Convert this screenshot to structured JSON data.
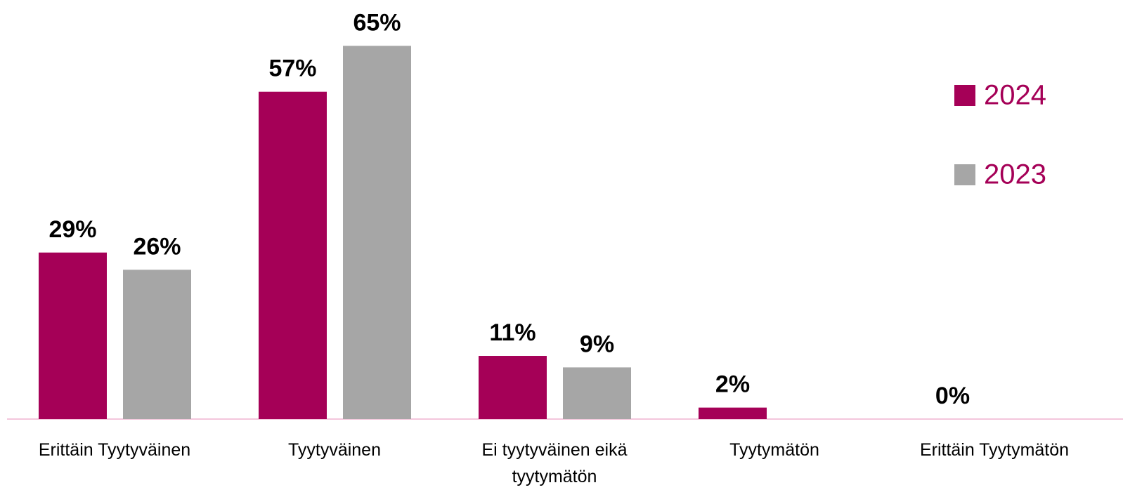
{
  "chart_data": {
    "type": "bar",
    "categories": [
      "Erittäin Tyytyväinen",
      "Tyytyväinen",
      "Ei tyytyväinen eikä tyytymätön",
      "Tyytymätön",
      "Erittäin Tyytymätön"
    ],
    "series": [
      {
        "name": "2024",
        "color": "#a50057",
        "values": [
          29,
          57,
          11,
          2,
          0
        ],
        "value_labels": [
          "29%",
          "57%",
          "11%",
          "2%",
          "0%"
        ]
      },
      {
        "name": "2023",
        "color": "#a6a6a6",
        "values": [
          26,
          65,
          9,
          null,
          null
        ],
        "value_labels": [
          "26%",
          "65%",
          "9%",
          null,
          null
        ]
      }
    ],
    "ylim": [
      0,
      72
    ],
    "legend": "right"
  }
}
